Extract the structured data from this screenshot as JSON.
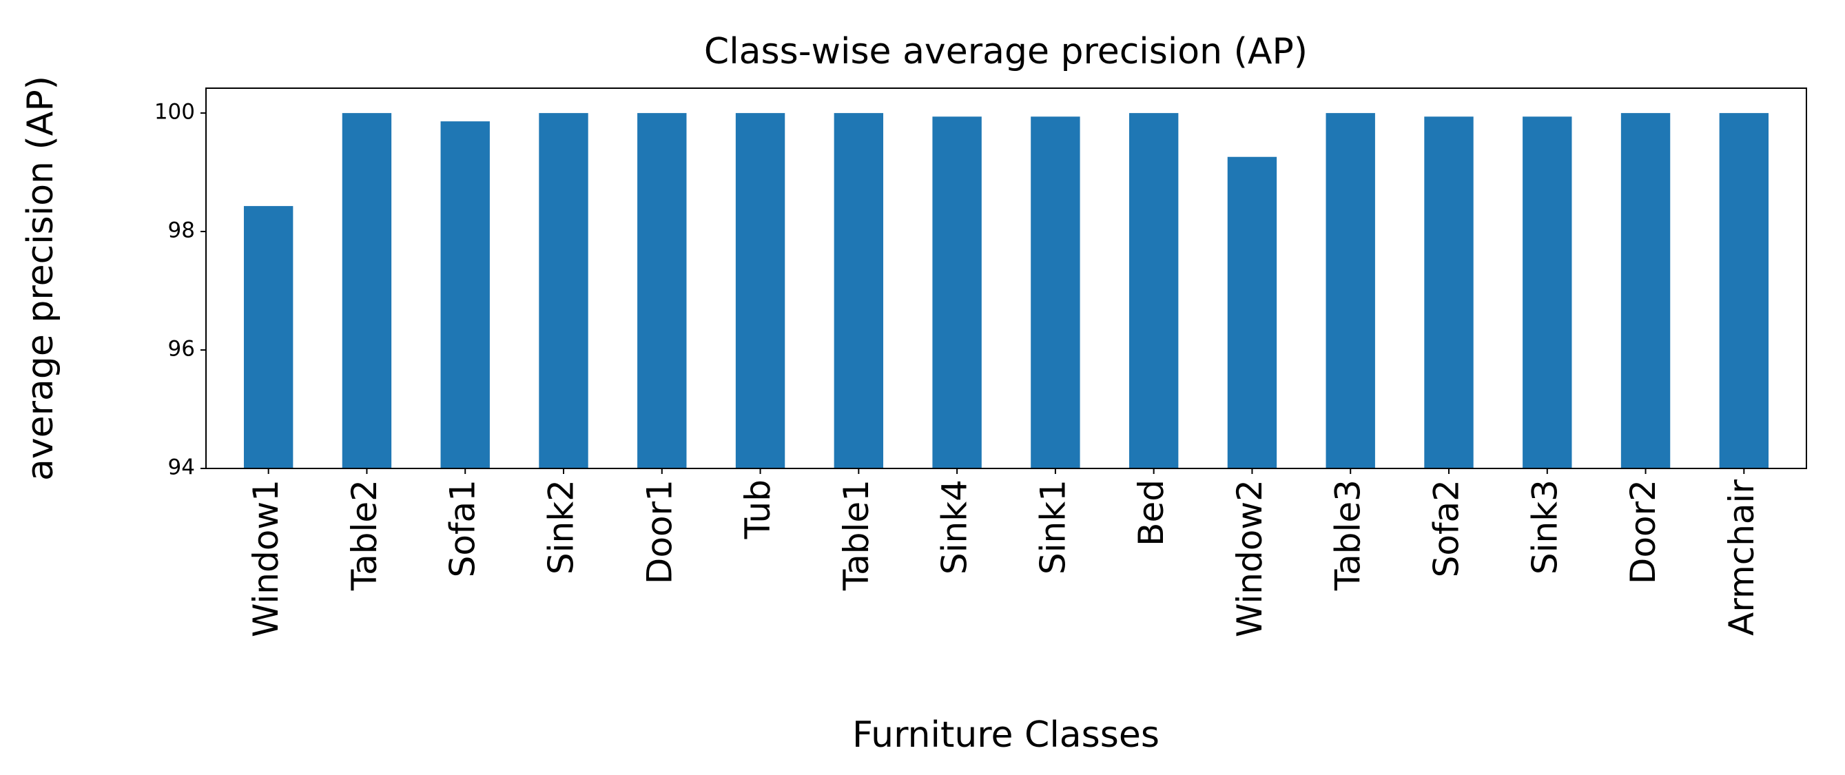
{
  "chart_data": {
    "type": "bar",
    "title": "Class-wise average precision (AP)",
    "x_label": "Furniture Classes",
    "y_label": "average precision (AP)",
    "categories": [
      "Window1",
      "Table2",
      "Sofa1",
      "Sink2",
      "Door1",
      "Tub",
      "Table1",
      "Sink4",
      "Sink1",
      "Bed",
      "Window2",
      "Table3",
      "Sofa2",
      "Sink3",
      "Door2",
      "Armchair"
    ],
    "values": [
      98.43,
      100,
      99.86,
      100,
      100,
      100,
      100,
      99.94,
      99.94,
      100,
      99.26,
      100,
      99.94,
      99.94,
      100,
      100
    ],
    "color": "#1f77b4",
    "ylim": [
      94,
      100.42
    ],
    "yticks": [
      94,
      96,
      98,
      100
    ]
  }
}
